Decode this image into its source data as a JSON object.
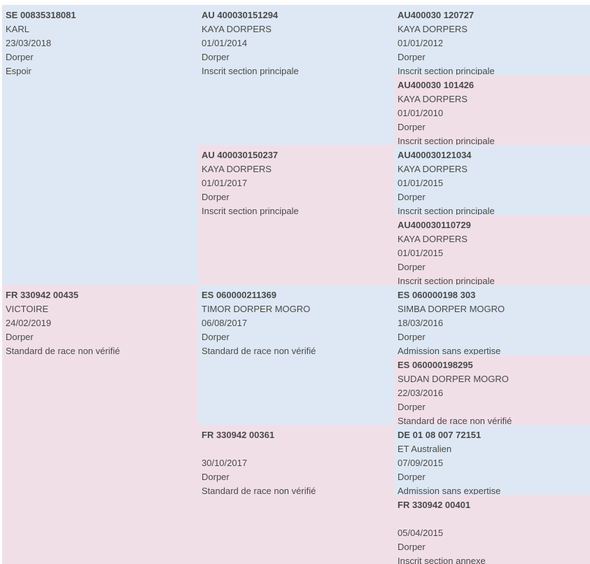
{
  "colors": {
    "male": "#dde8f4",
    "female": "#f1dfe8",
    "text": "#4a4a4a"
  },
  "pedigree": {
    "sire": {
      "id": "SE 00835318081",
      "name": "KARL",
      "date": "23/03/2018",
      "breed": "Dorper",
      "status": "Espoir"
    },
    "dam": {
      "id": "FR 330942 00435",
      "name": "VICTOIRE",
      "date": "24/02/2019",
      "breed": "Dorper",
      "status": "Standard de race non vérifié"
    },
    "sire_sire": {
      "id": "AU 400030151294",
      "name": "KAYA DORPERS",
      "date": "01/01/2014",
      "breed": "Dorper",
      "status": "Inscrit section principale"
    },
    "sire_dam": {
      "id": "AU 400030150237",
      "name": "KAYA DORPERS",
      "date": "01/01/2017",
      "breed": "Dorper",
      "status": "Inscrit section principale"
    },
    "dam_sire": {
      "id": "ES 060000211369",
      "name": "TIMOR DORPER MOGRO",
      "date": "06/08/2017",
      "breed": "Dorper",
      "status": "Standard de race non vérifié"
    },
    "dam_dam": {
      "id": "FR 330942 00361",
      "name": "",
      "date": "30/10/2017",
      "breed": "Dorper",
      "status": "Standard de race non vérifié"
    },
    "sire_sire_sire": {
      "id": "AU400030 120727",
      "name": "KAYA DORPERS",
      "date": "01/01/2012",
      "breed": "Dorper",
      "status": "Inscrit section principale"
    },
    "sire_sire_dam": {
      "id": "AU400030 101426",
      "name": "KAYA DORPERS",
      "date": "01/01/2010",
      "breed": "Dorper",
      "status": "Inscrit section principale"
    },
    "sire_dam_sire": {
      "id": "AU400030121034",
      "name": "KAYA DORPERS",
      "date": "01/01/2015",
      "breed": "Dorper",
      "status": "Inscrit section principale"
    },
    "sire_dam_dam": {
      "id": "AU400030110729",
      "name": "KAYA DORPERS",
      "date": "01/01/2015",
      "breed": "Dorper",
      "status": "Inscrit section principale"
    },
    "dam_sire_sire": {
      "id": "ES 060000198 303",
      "name": "SIMBA DORPER MOGRO",
      "date": "18/03/2016",
      "breed": "Dorper",
      "status": "Admission sans expertise"
    },
    "dam_sire_dam": {
      "id": "ES 060000198295",
      "name": "SUDAN DORPER MOGRO",
      "date": "22/03/2016",
      "breed": "Dorper",
      "status": "Standard de race non vérifié"
    },
    "dam_dam_sire": {
      "id": "DE 01 08 007 72151",
      "name": "ET Australien",
      "date": "07/09/2015",
      "breed": "Dorper",
      "status": "Admission sans expertise"
    },
    "dam_dam_dam": {
      "id": "FR 330942 00401",
      "name": "",
      "date": "05/04/2015",
      "breed": "Dorper",
      "status": "Inscrit section annexe"
    }
  }
}
